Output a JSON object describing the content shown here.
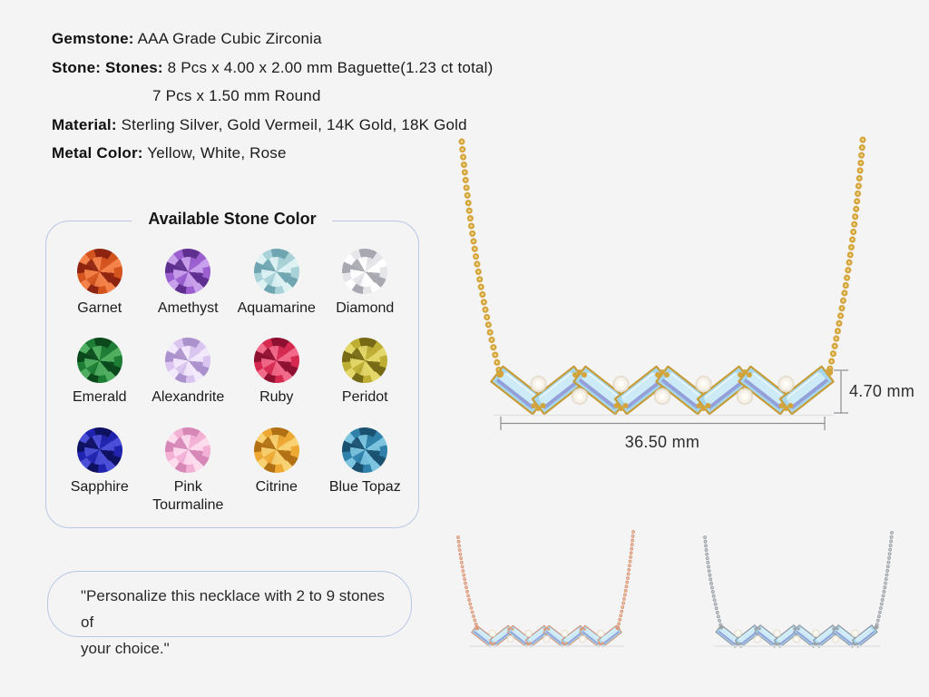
{
  "page": {
    "background": "#f4f4f5"
  },
  "specs": {
    "lines": [
      {
        "label": "Gemstone:",
        "value": " AAA Grade Cubic Zirconia",
        "indent": false
      },
      {
        "label": "Stone: Stones:",
        "value": " 8 Pcs x 4.00 x 2.00 mm Baguette(1.23 ct total)",
        "indent": false
      },
      {
        "label": "",
        "value": "7 Pcs x 1.50 mm Round",
        "indent": true
      },
      {
        "label": "Material:",
        "value": " Sterling Silver, Gold Vermeil, 14K Gold, 18K Gold",
        "indent": false
      },
      {
        "label": "Metal Color:",
        "value": " Yellow, White, Rose",
        "indent": false
      }
    ]
  },
  "stone_panel": {
    "title": "Available Stone Color",
    "border_color": "#b9c6e4",
    "stones": [
      {
        "name": "Garnet",
        "light": "#f4824a",
        "base": "#d4541e",
        "dark": "#8e2410"
      },
      {
        "name": "Amethyst",
        "light": "#c9a0ec",
        "base": "#9b5fd0",
        "dark": "#5e2f8e"
      },
      {
        "name": "Aquamarine",
        "light": "#def2f4",
        "base": "#a9d2d8",
        "dark": "#6fa5b0"
      },
      {
        "name": "Diamond",
        "light": "#ffffff",
        "base": "#e6e6ea",
        "dark": "#a8a8b0"
      },
      {
        "name": "Emerald",
        "light": "#4fae60",
        "base": "#1e7d34",
        "dark": "#0b491d"
      },
      {
        "name": "Alexandrite",
        "light": "#f3e9fc",
        "base": "#d9c5ef",
        "dark": "#ab92cc"
      },
      {
        "name": "Ruby",
        "light": "#f26a8a",
        "base": "#d62950",
        "dark": "#8e1031"
      },
      {
        "name": "Peridot",
        "light": "#e3d76a",
        "base": "#bfae34",
        "dark": "#776a16"
      },
      {
        "name": "Sapphire",
        "light": "#4b4fd8",
        "base": "#2023ae",
        "dark": "#0e1060"
      },
      {
        "name": "Pink Tourmaline",
        "light": "#fddcee",
        "base": "#f3b1d6",
        "dark": "#d687b6"
      },
      {
        "name": "Citrine",
        "light": "#f8d173",
        "base": "#eda933",
        "dark": "#b07013"
      },
      {
        "name": "Blue Topaz",
        "light": "#7cc4e0",
        "base": "#2f81aa",
        "dark": "#1a5070"
      }
    ]
  },
  "quote": {
    "line1": "\"Personalize this necklace with 2 to 9 stones of",
    "line2": "your choice.\""
  },
  "measurements": {
    "height": "4.70 mm",
    "width": "36.50 mm"
  },
  "necklace_images": {
    "baguette_count": 8,
    "round_count": 7,
    "stones": {
      "baguette": "#a6d6eb",
      "baguette_table": "#cdeaf7",
      "baguette_accent": "#94a0da",
      "baguette_highlight": "#e8f6fc",
      "round": "#f7f3ea",
      "round_center": "#fffdf7",
      "round_edge": "#e7e0d2"
    },
    "variants": [
      {
        "id": "gold",
        "chain": "#d4a43c",
        "chain_highlight": "#f1da8c",
        "frame": "#c79b36"
      },
      {
        "id": "rose",
        "chain": "#dc9c7e",
        "chain_highlight": "#f4d0c0",
        "frame": "#d28f70"
      },
      {
        "id": "white",
        "chain": "#9fa3aa",
        "chain_highlight": "#e2e5e9",
        "frame": "#8f939a"
      }
    ],
    "dimension_line_color": "#8e8e92",
    "shadow_line_color": "#e1e1e3"
  }
}
